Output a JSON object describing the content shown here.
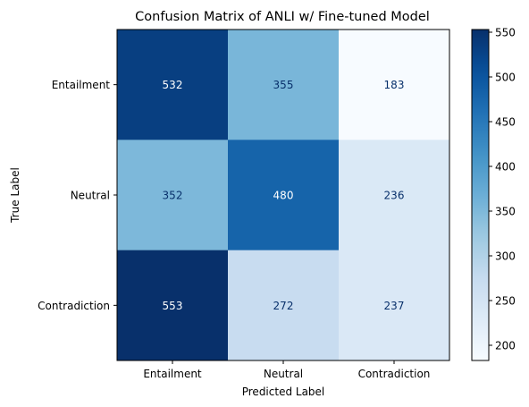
{
  "chart_data": {
    "type": "heatmap",
    "title": "Confusion Matrix of ANLI w/ Fine-tuned Model",
    "xlabel": "Predicted Label",
    "ylabel": "True Label",
    "x_categories": [
      "Entailment",
      "Neutral",
      "Contradiction"
    ],
    "y_categories": [
      "Entailment",
      "Neutral",
      "Contradiction"
    ],
    "values": [
      [
        532,
        355,
        183
      ],
      [
        352,
        480,
        236
      ],
      [
        553,
        272,
        237
      ]
    ],
    "colormap": "Blues",
    "color_range": [
      183,
      553
    ],
    "colorbar_ticks": [
      200,
      250,
      300,
      350,
      400,
      450,
      500,
      550
    ],
    "grid": false
  }
}
